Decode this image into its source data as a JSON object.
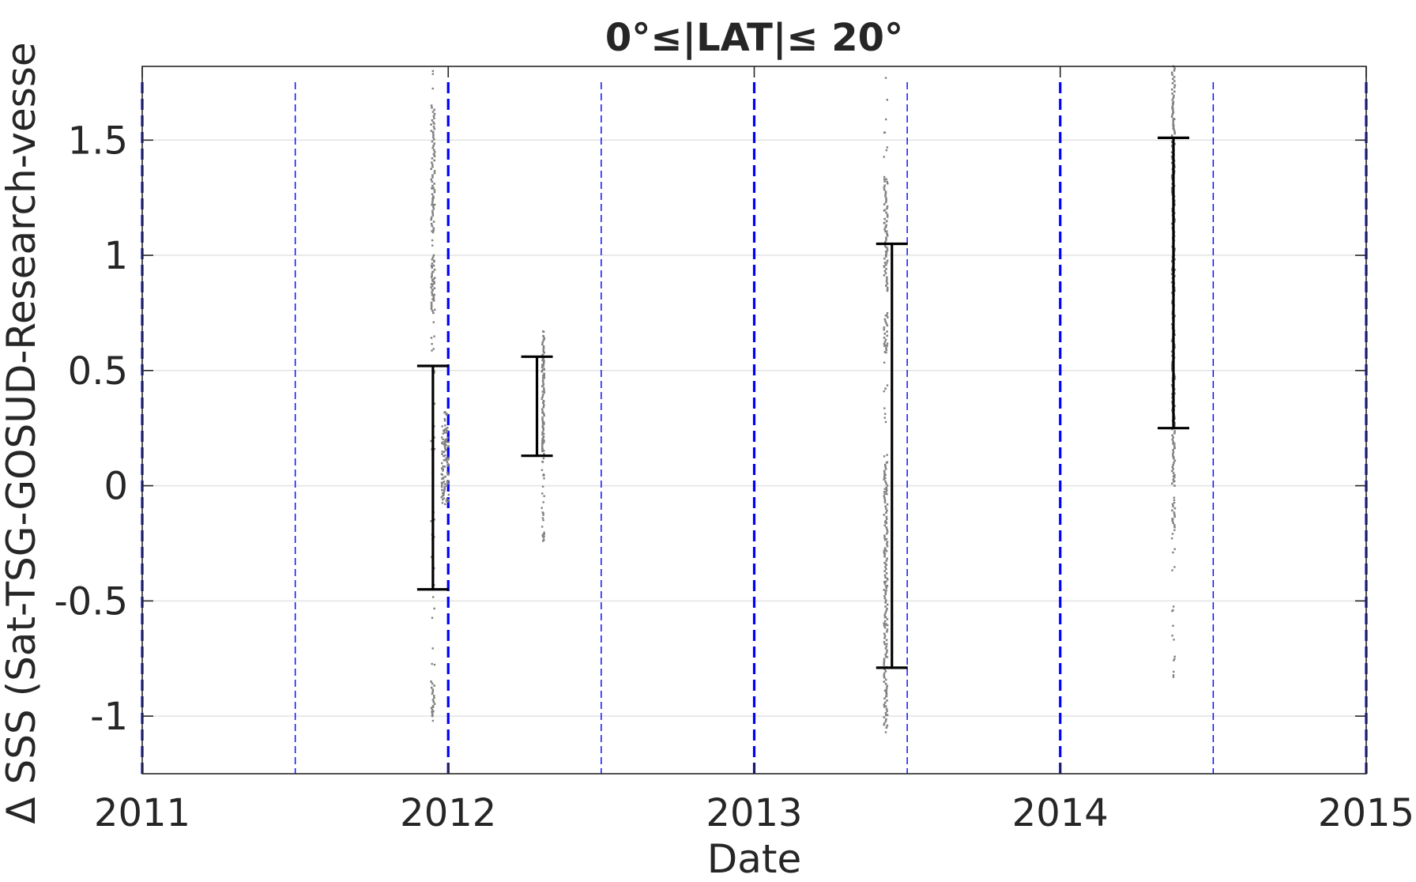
{
  "chart_data": {
    "type": "scatter",
    "title": "0°≤|LAT|≤ 20°",
    "xlabel": "Date",
    "ylabel": "Δ SSS (Sat-TSG-GOSUD-Research-vesse",
    "xlim": [
      2011,
      2015
    ],
    "ylim": [
      -1.25,
      1.82
    ],
    "x_ticks": [
      "2011",
      "2012",
      "2013",
      "2014",
      "2015"
    ],
    "y_ticks": [
      -1,
      -0.5,
      0,
      0.5,
      1,
      1.5
    ],
    "y_tick_labels": [
      "-1",
      "-0.5",
      "0",
      "0.5",
      "1",
      "1.5"
    ],
    "grid": "horizontal",
    "colors": {
      "points": "#808080",
      "errorbars": "#000000",
      "year_lines": "#0000ff",
      "grid": "#e3e3e3",
      "axes": "#262626"
    },
    "year_boundaries": [
      2011,
      2012,
      2013,
      2014,
      2015
    ],
    "half_year_lines": [
      2011.5,
      2012.5,
      2013.5,
      2014.5
    ],
    "errorbars": [
      {
        "x": 2011.95,
        "low": -0.45,
        "high": 0.52
      },
      {
        "x": 2012.29,
        "low": 0.13,
        "high": 0.56
      },
      {
        "x": 2013.45,
        "low": -0.79,
        "high": 1.05
      },
      {
        "x": 2014.37,
        "low": 0.25,
        "high": 1.51
      }
    ],
    "point_clusters": [
      {
        "x": 2011.95,
        "x_spread": 0.006,
        "y_min": -1.02,
        "y_max": 1.8,
        "dense_ranges": [
          [
            -1.0,
            -0.85
          ],
          [
            0.75,
            1.0
          ],
          [
            1.1,
            1.65
          ]
        ]
      },
      {
        "x": 2011.99,
        "x_spread": 0.012,
        "y_min": -0.08,
        "y_max": 0.32,
        "dense_ranges": [
          [
            -0.05,
            0.2
          ]
        ]
      },
      {
        "x": 2012.31,
        "x_spread": 0.004,
        "y_min": -0.24,
        "y_max": 0.67,
        "dense_ranges": [
          [
            0.15,
            0.65
          ]
        ]
      },
      {
        "x": 2013.43,
        "x_spread": 0.006,
        "y_min": -1.07,
        "y_max": 1.77,
        "dense_ranges": [
          [
            -1.05,
            0.1
          ],
          [
            0.58,
            0.74
          ],
          [
            0.85,
            1.33
          ]
        ]
      },
      {
        "x": 2014.37,
        "x_spread": 0.005,
        "y_min": -0.83,
        "y_max": 1.82,
        "dense_ranges": [
          [
            0.0,
            1.82
          ],
          [
            -0.18,
            -0.08
          ]
        ]
      }
    ]
  }
}
